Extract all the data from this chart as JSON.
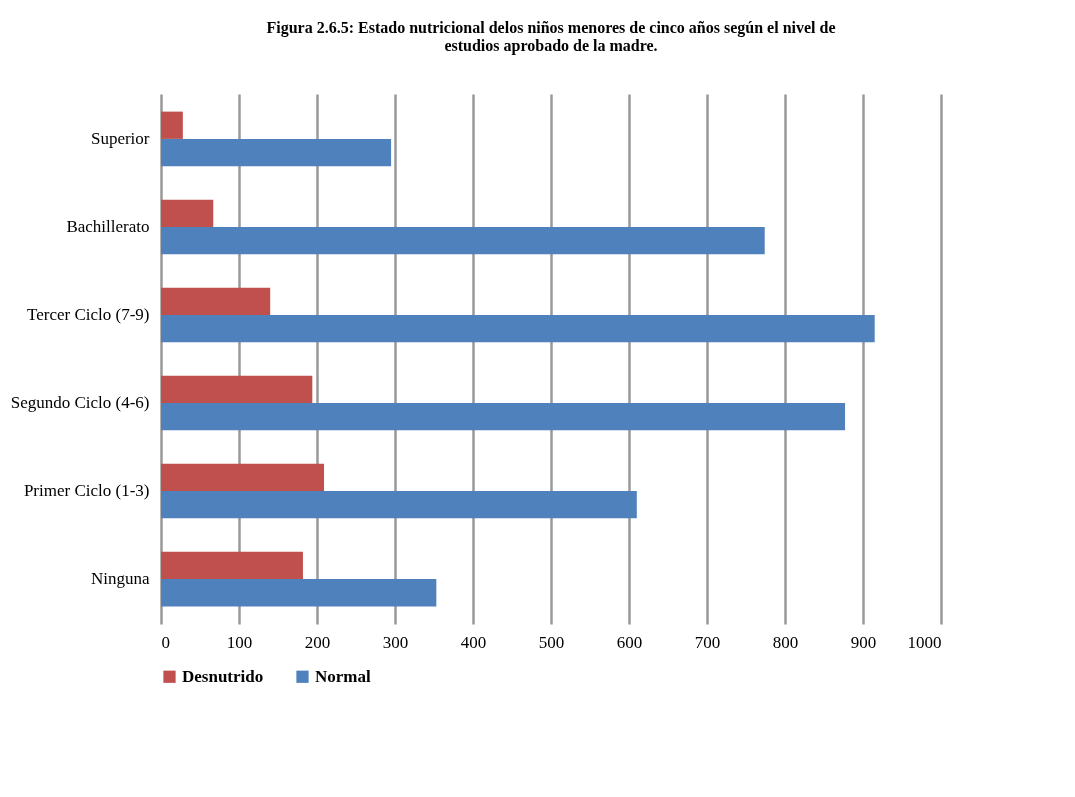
{
  "chart_data": {
    "type": "bar",
    "orientation": "horizontal",
    "title": "Figura 2.6.5: Estado nutricional delos niños menores de cinco años según el nivel de estudios aprobado de la madre.",
    "categories": [
      "Superior",
      "Bachillerato",
      "Tercer Ciclo (7-9)",
      "Segundo Ciclo (4-6)",
      "Primer Ciclo (1-3)",
      "Ninguna"
    ],
    "series": [
      {
        "name": "Desnutrido",
        "color": "#c0504d",
        "values": [
          28,
          67,
          140,
          194,
          209,
          182
        ]
      },
      {
        "name": "Normal",
        "color": "#4f81bd",
        "values": [
          295,
          774,
          915,
          877,
          610,
          353
        ]
      }
    ],
    "xlim": [
      0,
      1000
    ],
    "xticks": [
      0,
      100,
      200,
      300,
      400,
      500,
      600,
      700,
      800,
      900,
      1000
    ],
    "grid": "x",
    "legend": "bottom"
  }
}
